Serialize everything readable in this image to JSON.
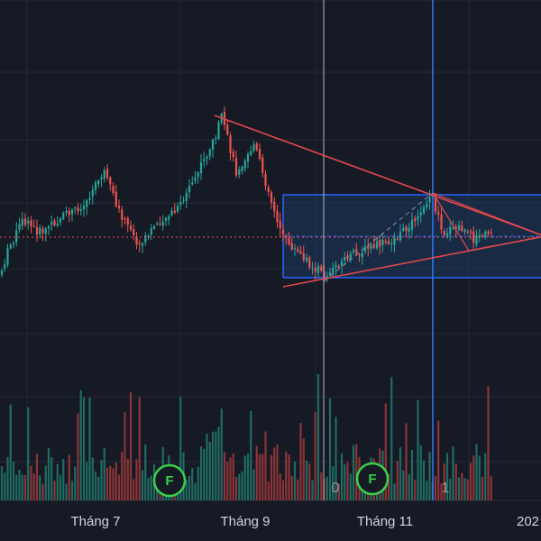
{
  "chart_data": {
    "type": "candlestick",
    "x_ticks": [
      "Tháng 7",
      "Tháng 9",
      "Tháng 11",
      "202"
    ],
    "colors": {
      "background": "#161a25",
      "grid": "#242833",
      "up": "#26a69a",
      "down": "#ef5350",
      "up_volume": "#1f6b62",
      "down_volume": "#8c3437",
      "trendline": "#e0474c",
      "range_box": "#2962ff",
      "range_fill": "#1e3a5f",
      "crosshair_vertical": "#3179f5",
      "reference_vertical": "#b2b5be",
      "markers": "#3bd14a"
    },
    "markers": [
      {
        "label": "F",
        "icon": "earnings-flag-icon"
      },
      {
        "label": "F",
        "icon": "earnings-flag-icon"
      }
    ],
    "volume_counts": [
      "0",
      "1"
    ],
    "annotations": [
      "descending-trendline",
      "ascending-trendline",
      "price-range-box",
      "symmetrical-triangle"
    ],
    "grid": true
  }
}
